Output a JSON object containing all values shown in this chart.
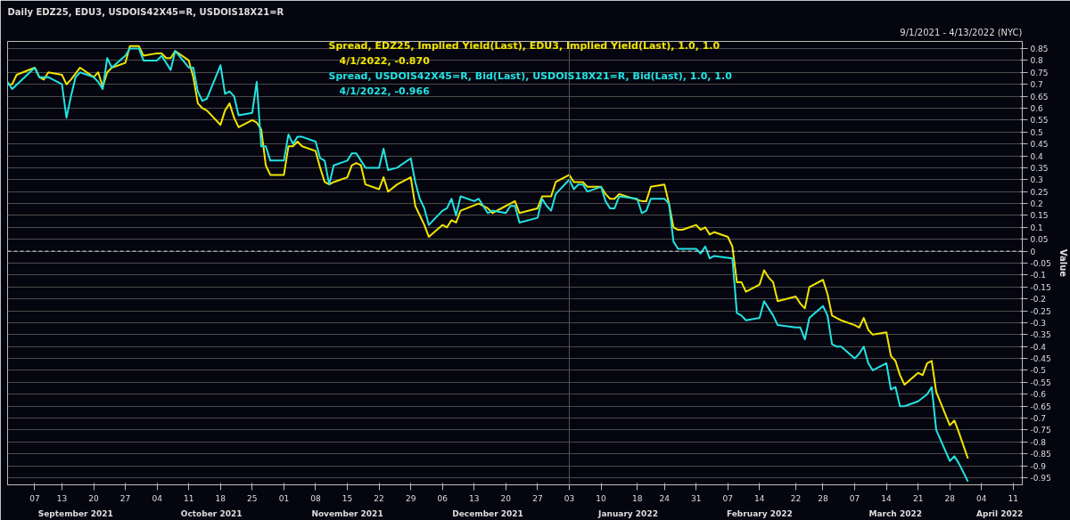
{
  "chart_data": {
    "type": "line",
    "title": "Daily EDZ25, EDU3, USDOIS42X45=R, USDOIS18X21=R",
    "subtitle": "9/1/2021 - 4/13/2022 (NYC)",
    "ylabel": "Value",
    "xlim": [
      "2021-09-01",
      "2022-04-13"
    ],
    "xticks": [
      {
        "value": "2021-09-07",
        "label": "07"
      },
      {
        "value": "2021-09-13",
        "label": "13"
      },
      {
        "value": "2021-09-20",
        "label": "20"
      },
      {
        "value": "2021-09-27",
        "label": "27"
      },
      {
        "value": "2021-10-04",
        "label": "04"
      },
      {
        "value": "2021-10-11",
        "label": "11"
      },
      {
        "value": "2021-10-18",
        "label": "18"
      },
      {
        "value": "2021-10-25",
        "label": "25"
      },
      {
        "value": "2021-11-01",
        "label": "01"
      },
      {
        "value": "2021-11-08",
        "label": "08"
      },
      {
        "value": "2021-11-15",
        "label": "15"
      },
      {
        "value": "2021-11-22",
        "label": "22"
      },
      {
        "value": "2021-11-29",
        "label": "29"
      },
      {
        "value": "2021-12-06",
        "label": "06"
      },
      {
        "value": "2021-12-13",
        "label": "13"
      },
      {
        "value": "2021-12-20",
        "label": "20"
      },
      {
        "value": "2021-12-27",
        "label": "27"
      },
      {
        "value": "2022-01-03",
        "label": "03"
      },
      {
        "value": "2022-01-10",
        "label": "10"
      },
      {
        "value": "2022-01-18",
        "label": "18"
      },
      {
        "value": "2022-01-24",
        "label": "24"
      },
      {
        "value": "2022-01-31",
        "label": "31"
      },
      {
        "value": "2022-02-07",
        "label": "07"
      },
      {
        "value": "2022-02-14",
        "label": "14"
      },
      {
        "value": "2022-02-22",
        "label": "22"
      },
      {
        "value": "2022-02-28",
        "label": "28"
      },
      {
        "value": "2022-03-07",
        "label": "07"
      },
      {
        "value": "2022-03-14",
        "label": "14"
      },
      {
        "value": "2022-03-21",
        "label": "21"
      },
      {
        "value": "2022-03-28",
        "label": "28"
      },
      {
        "value": "2022-04-04",
        "label": "04"
      },
      {
        "value": "2022-04-11",
        "label": "11"
      }
    ],
    "x2lim": [
      "2021-09-01",
      "2022-04-13"
    ],
    "x2ticks": [
      {
        "value": "2021-09-16",
        "label": "September 2021"
      },
      {
        "value": "2021-10-16",
        "label": "October 2021"
      },
      {
        "value": "2021-11-15",
        "label": "November 2021"
      },
      {
        "value": "2021-12-16",
        "label": "December 2021"
      },
      {
        "value": "2022-01-16",
        "label": "January 2022"
      },
      {
        "value": "2022-02-14",
        "label": "February 2022"
      },
      {
        "value": "2022-03-16",
        "label": "March 2022"
      },
      {
        "value": "2022-04-08",
        "label": "April 2022"
      }
    ],
    "ylim": [
      -0.98,
      0.88
    ],
    "yticks": [
      0.85,
      0.8,
      0.75,
      0.7,
      0.65,
      0.6,
      0.55,
      0.5,
      0.45,
      0.4,
      0.35,
      0.3,
      0.25,
      0.2,
      0.15,
      0.1,
      0.05,
      0,
      -0.05,
      -0.1,
      -0.15,
      -0.2,
      -0.25,
      -0.3,
      -0.35,
      -0.4,
      -0.45,
      -0.5,
      -0.55,
      -0.6,
      -0.65,
      -0.7,
      -0.75,
      -0.8,
      -0.85,
      -0.9,
      -0.95
    ],
    "grid": "y",
    "legend": "top",
    "ref_lines": [
      {
        "axis": "y",
        "value": 0,
        "color": "#dddddd",
        "line_style": "dashed"
      },
      {
        "axis": "x",
        "value": "2022-01-03",
        "color": "#555555",
        "line_style": "solid"
      }
    ],
    "series": [
      {
        "name": "Spread, EDZ25, Implied Yield(Last), EDU3, Implied Yield(Last),  1.0, 1.0",
        "color": "#f2e500",
        "x": [
          "2021-09-01",
          "2021-09-02",
          "2021-09-03",
          "2021-09-07",
          "2021-09-08",
          "2021-09-09",
          "2021-09-10",
          "2021-09-13",
          "2021-09-14",
          "2021-09-15",
          "2021-09-17",
          "2021-09-20",
          "2021-09-21",
          "2021-09-22",
          "2021-09-23",
          "2021-09-24",
          "2021-09-27",
          "2021-09-28",
          "2021-09-29",
          "2021-09-30",
          "2021-10-01",
          "2021-10-04",
          "2021-10-05",
          "2021-10-06",
          "2021-10-07",
          "2021-10-08",
          "2021-10-11",
          "2021-10-12",
          "2021-10-13",
          "2021-10-14",
          "2021-10-15",
          "2021-10-18",
          "2021-10-19",
          "2021-10-20",
          "2021-10-21",
          "2021-10-22",
          "2021-10-25",
          "2021-10-26",
          "2021-10-27",
          "2021-10-28",
          "2021-10-29",
          "2021-11-01",
          "2021-11-02",
          "2021-11-03",
          "2021-11-04",
          "2021-11-05",
          "2021-11-08",
          "2021-11-09",
          "2021-11-10",
          "2021-11-11",
          "2021-11-12",
          "2021-11-15",
          "2021-11-16",
          "2021-11-17",
          "2021-11-18",
          "2021-11-19",
          "2021-11-22",
          "2021-11-23",
          "2021-11-24",
          "2021-11-26",
          "2021-11-29",
          "2021-11-30",
          "2021-12-02",
          "2021-12-03",
          "2021-12-06",
          "2021-12-07",
          "2021-12-08",
          "2021-12-09",
          "2021-12-10",
          "2021-12-14",
          "2021-12-16",
          "2021-12-17",
          "2021-12-20",
          "2021-12-21",
          "2021-12-22",
          "2021-12-23",
          "2021-12-27",
          "2021-12-28",
          "2021-12-30",
          "2021-12-31",
          "2022-01-03",
          "2022-01-04",
          "2022-01-06",
          "2022-01-07",
          "2022-01-10",
          "2022-01-11",
          "2022-01-12",
          "2022-01-13",
          "2022-01-14",
          "2022-01-19",
          "2022-01-20",
          "2022-01-21",
          "2022-01-24",
          "2022-01-25",
          "2022-01-26",
          "2022-01-27",
          "2022-01-28",
          "2022-01-31",
          "2022-02-01",
          "2022-02-02",
          "2022-02-03",
          "2022-02-04",
          "2022-02-07",
          "2022-02-08",
          "2022-02-09",
          "2022-02-10",
          "2022-02-11",
          "2022-02-14",
          "2022-02-15",
          "2022-02-16",
          "2022-02-17",
          "2022-02-18",
          "2022-02-22",
          "2022-02-23",
          "2022-02-24",
          "2022-02-25",
          "2022-02-28",
          "2022-03-01",
          "2022-03-02",
          "2022-03-03",
          "2022-03-04",
          "2022-03-07",
          "2022-03-08",
          "2022-03-09",
          "2022-03-10",
          "2022-03-11",
          "2022-03-14",
          "2022-03-15",
          "2022-03-16",
          "2022-03-17",
          "2022-03-18",
          "2022-03-21",
          "2022-03-22",
          "2022-03-23",
          "2022-03-24",
          "2022-03-25",
          "2022-03-28",
          "2022-03-29",
          "2022-03-30",
          "2022-04-01"
        ],
        "values": [
          0.7,
          0.7,
          0.74,
          0.77,
          0.73,
          0.72,
          0.75,
          0.74,
          0.7,
          0.72,
          0.77,
          0.73,
          0.75,
          0.69,
          0.75,
          0.77,
          0.79,
          0.86,
          0.86,
          0.86,
          0.82,
          0.83,
          0.83,
          0.81,
          0.81,
          0.84,
          0.8,
          0.73,
          0.62,
          0.6,
          0.59,
          0.53,
          0.59,
          0.62,
          0.56,
          0.52,
          0.55,
          0.54,
          0.51,
          0.36,
          0.32,
          0.32,
          0.44,
          0.44,
          0.46,
          0.44,
          0.42,
          0.35,
          0.29,
          0.28,
          0.29,
          0.31,
          0.36,
          0.37,
          0.36,
          0.28,
          0.26,
          0.31,
          0.25,
          0.28,
          0.31,
          0.19,
          0.11,
          0.06,
          0.11,
          0.1,
          0.13,
          0.12,
          0.17,
          0.2,
          0.18,
          0.16,
          0.19,
          0.2,
          0.21,
          0.16,
          0.18,
          0.23,
          0.23,
          0.29,
          0.32,
          0.29,
          0.29,
          0.27,
          0.27,
          0.24,
          0.22,
          0.22,
          0.24,
          0.21,
          0.21,
          0.27,
          0.28,
          0.2,
          0.1,
          0.09,
          0.09,
          0.11,
          0.09,
          0.1,
          0.07,
          0.08,
          0.06,
          0.02,
          -0.13,
          -0.13,
          -0.17,
          -0.14,
          -0.08,
          -0.11,
          -0.13,
          -0.21,
          -0.19,
          -0.22,
          -0.24,
          -0.15,
          -0.12,
          -0.18,
          -0.27,
          -0.28,
          -0.29,
          -0.31,
          -0.32,
          -0.28,
          -0.33,
          -0.35,
          -0.34,
          -0.44,
          -0.46,
          -0.52,
          -0.56,
          -0.51,
          -0.52,
          -0.47,
          -0.46,
          -0.59,
          -0.73,
          -0.71,
          -0.76,
          -0.87
        ]
      },
      {
        "name": "Spread, USDOIS42X45=R, Bid(Last), USDOIS18X21=R, Bid(Last),  1.0, 1.0",
        "color": "#22e3e3",
        "x": [
          "2021-09-01",
          "2021-09-02",
          "2021-09-07",
          "2021-09-08",
          "2021-09-10",
          "2021-09-13",
          "2021-09-14",
          "2021-09-15",
          "2021-09-16",
          "2021-09-17",
          "2021-09-20",
          "2021-09-21",
          "2021-09-22",
          "2021-09-23",
          "2021-09-24",
          "2021-09-27",
          "2021-09-28",
          "2021-09-29",
          "2021-09-30",
          "2021-10-01",
          "2021-10-04",
          "2021-10-05",
          "2021-10-07",
          "2021-10-08",
          "2021-10-11",
          "2021-10-12",
          "2021-10-13",
          "2021-10-14",
          "2021-10-15",
          "2021-10-18",
          "2021-10-19",
          "2021-10-20",
          "2021-10-21",
          "2021-10-22",
          "2021-10-25",
          "2021-10-26",
          "2021-10-27",
          "2021-10-28",
          "2021-10-29",
          "2021-11-01",
          "2021-11-02",
          "2021-11-03",
          "2021-11-04",
          "2021-11-05",
          "2021-11-08",
          "2021-11-09",
          "2021-11-10",
          "2021-11-11",
          "2021-11-12",
          "2021-11-15",
          "2021-11-16",
          "2021-11-17",
          "2021-11-18",
          "2021-11-19",
          "2021-11-22",
          "2021-11-23",
          "2021-11-24",
          "2021-11-26",
          "2021-11-29",
          "2021-11-30",
          "2021-12-01",
          "2021-12-02",
          "2021-12-03",
          "2021-12-06",
          "2021-12-07",
          "2021-12-08",
          "2021-12-09",
          "2021-12-10",
          "2021-12-13",
          "2021-12-14",
          "2021-12-16",
          "2021-12-17",
          "2021-12-20",
          "2021-12-21",
          "2021-12-22",
          "2021-12-23",
          "2021-12-27",
          "2021-12-28",
          "2021-12-29",
          "2021-12-30",
          "2021-12-31",
          "2022-01-03",
          "2022-01-04",
          "2022-01-05",
          "2022-01-06",
          "2022-01-07",
          "2022-01-10",
          "2022-01-11",
          "2022-01-12",
          "2022-01-13",
          "2022-01-14",
          "2022-01-18",
          "2022-01-19",
          "2022-01-20",
          "2022-01-21",
          "2022-01-24",
          "2022-01-25",
          "2022-01-26",
          "2022-01-27",
          "2022-01-31",
          "2022-02-01",
          "2022-02-02",
          "2022-02-03",
          "2022-02-04",
          "2022-02-08",
          "2022-02-09",
          "2022-02-10",
          "2022-02-11",
          "2022-02-14",
          "2022-02-15",
          "2022-02-16",
          "2022-02-17",
          "2022-02-18",
          "2022-02-22",
          "2022-02-23",
          "2022-02-24",
          "2022-02-25",
          "2022-02-28",
          "2022-03-01",
          "2022-03-02",
          "2022-03-03",
          "2022-03-04",
          "2022-03-07",
          "2022-03-08",
          "2022-03-09",
          "2022-03-10",
          "2022-03-11",
          "2022-03-14",
          "2022-03-15",
          "2022-03-16",
          "2022-03-17",
          "2022-03-18",
          "2022-03-21",
          "2022-03-23",
          "2022-03-24",
          "2022-03-25",
          "2022-03-28",
          "2022-03-29",
          "2022-03-30",
          "2022-04-01"
        ],
        "values": [
          0.71,
          0.68,
          0.77,
          0.73,
          0.73,
          0.7,
          0.56,
          0.65,
          0.73,
          0.75,
          0.73,
          0.71,
          0.68,
          0.81,
          0.77,
          0.82,
          0.85,
          0.85,
          0.85,
          0.8,
          0.8,
          0.82,
          0.76,
          0.84,
          0.77,
          0.77,
          0.67,
          0.63,
          0.64,
          0.78,
          0.66,
          0.67,
          0.65,
          0.57,
          0.58,
          0.71,
          0.44,
          0.44,
          0.38,
          0.38,
          0.49,
          0.45,
          0.48,
          0.48,
          0.46,
          0.39,
          0.38,
          0.28,
          0.36,
          0.38,
          0.41,
          0.41,
          0.38,
          0.35,
          0.35,
          0.43,
          0.34,
          0.35,
          0.39,
          0.29,
          0.22,
          0.18,
          0.11,
          0.17,
          0.18,
          0.22,
          0.15,
          0.23,
          0.21,
          0.22,
          0.16,
          0.17,
          0.16,
          0.19,
          0.19,
          0.12,
          0.14,
          0.22,
          0.19,
          0.17,
          0.24,
          0.3,
          0.26,
          0.28,
          0.28,
          0.25,
          0.27,
          0.21,
          0.18,
          0.18,
          0.23,
          0.22,
          0.16,
          0.17,
          0.22,
          0.22,
          0.2,
          0.04,
          0.01,
          0.01,
          -0.01,
          0.02,
          -0.03,
          -0.02,
          -0.03,
          -0.26,
          -0.27,
          -0.29,
          -0.28,
          -0.21,
          -0.24,
          -0.27,
          -0.31,
          -0.32,
          -0.32,
          -0.37,
          -0.28,
          -0.23,
          -0.27,
          -0.39,
          -0.4,
          -0.4,
          -0.45,
          -0.43,
          -0.4,
          -0.47,
          -0.5,
          -0.47,
          -0.58,
          -0.57,
          -0.65,
          -0.65,
          -0.63,
          -0.6,
          -0.57,
          -0.75,
          -0.88,
          -0.86,
          -0.89,
          -0.966
        ]
      }
    ],
    "annotations": [
      "4/1/2022, -0.870",
      "4/1/2022, -0.966"
    ]
  }
}
